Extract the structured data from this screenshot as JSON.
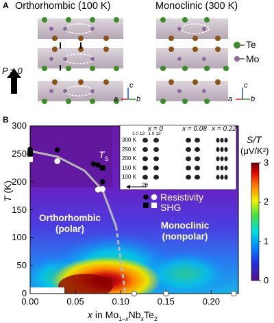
{
  "panel_a": {
    "letter": "A",
    "left_title": "Orthorhombic (100 K)",
    "right_title": "Monoclinic (300 K)",
    "legend_te": "Te",
    "legend_mo": "Mo",
    "pressure_label": "P ≠ 0",
    "axis_a": "a",
    "axis_b": "b",
    "axis_c": "c",
    "colors": {
      "te_green": "#3d8c2a",
      "te_brown": "#8a5418",
      "mo_purple": "#8c6aa0",
      "octahedra": "#b8a9b6"
    }
  },
  "panel_b": {
    "letter": "B",
    "ylabel_italic": "T",
    "ylabel_unit": " (K)",
    "xlabel_italic": "x",
    "xlabel_rest": " in Mo",
    "xlabel_sub1": "1–",
    "xlabel_sub1_x": "x",
    "xlabel_nb": "Nb",
    "xlabel_sub2": "x",
    "xlabel_te": "Te",
    "xlabel_sub3": "2",
    "ts_label": "T",
    "ts_sub": "S",
    "region_left_line1": "Orthorhombic",
    "region_left_line2": "(polar)",
    "region_right_line1": "Monoclinic",
    "region_right_line2": "(nonpolar)",
    "legend_resistivity": "Resistivity",
    "legend_shg": "SHG",
    "colorbar_title": "S/T",
    "colorbar_unit": "(μV/K²)",
    "colorbar_ticks": [
      "3",
      "2",
      "1",
      "0"
    ],
    "inset": {
      "col_labels": [
        "x = 0",
        "x = 0.08",
        "x = 0.22"
      ],
      "peak_labels": "1 0 13   1 0 13",
      "row_labels": [
        "300 K",
        "250 K",
        "200 K",
        "150 K",
        "100 K"
      ],
      "axis_label": "2θ"
    }
  },
  "chart_data": {
    "type": "heatmap",
    "xlabel": "x in Mo1–xNbxTe2",
    "ylabel": "T (K)",
    "xlim": [
      0,
      0.23
    ],
    "ylim": [
      0,
      300
    ],
    "x_ticks": [
      "0.00",
      "0.05",
      "0.10",
      "0.15",
      "0.20"
    ],
    "y_ticks": [
      "0",
      "50",
      "100",
      "150",
      "200",
      "250",
      "300"
    ],
    "colorbar": {
      "label": "S/T (μV/K²)",
      "range": [
        0,
        3
      ]
    },
    "series": [
      {
        "name": "Resistivity",
        "marker": "filled-circle",
        "points": [
          [
            0.0,
            258
          ],
          [
            0.0,
            255
          ],
          [
            0.03,
            257
          ],
          [
            0.07,
            232
          ],
          [
            0.075,
            230
          ],
          [
            0.08,
            200
          ]
        ]
      },
      {
        "name": "Resistivity",
        "marker": "open-circle",
        "points": [
          [
            0.0,
            245
          ],
          [
            0.03,
            237
          ],
          [
            0.075,
            186
          ],
          [
            0.08,
            187
          ],
          [
            0.115,
            0
          ],
          [
            0.15,
            0
          ],
          [
            0.225,
            0
          ]
        ]
      },
      {
        "name": "SHG",
        "marker": "filled-square",
        "points": [
          [
            0.0,
            250
          ],
          [
            0.08,
            225
          ]
        ]
      },
      {
        "name": "SHG",
        "marker": "open-square",
        "points": [
          [
            0.0,
            240
          ]
        ]
      }
    ],
    "phase_boundary": {
      "label": "TS",
      "points": [
        [
          0.0,
          255
        ],
        [
          0.03,
          245
        ],
        [
          0.06,
          220
        ],
        [
          0.08,
          185
        ],
        [
          0.095,
          120
        ],
        [
          0.1,
          60
        ],
        [
          0.105,
          0
        ]
      ]
    }
  }
}
